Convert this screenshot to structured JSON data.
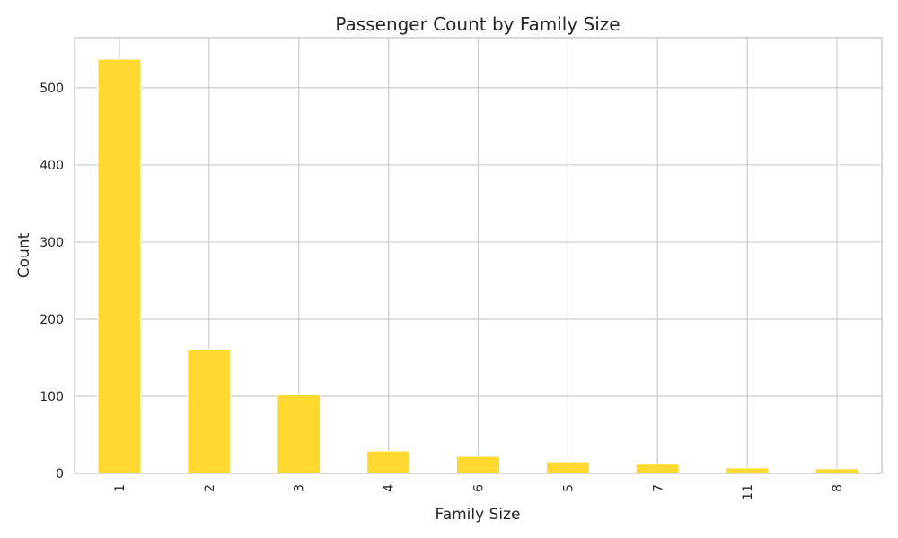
{
  "chart_data": {
    "type": "bar",
    "title": "Passenger Count by Family Size",
    "xlabel": "Family Size",
    "ylabel": "Count",
    "categories": [
      "1",
      "2",
      "3",
      "4",
      "6",
      "5",
      "7",
      "11",
      "8"
    ],
    "values": [
      537,
      161,
      102,
      29,
      22,
      15,
      12,
      7,
      6
    ],
    "ylim": [
      0,
      565
    ],
    "yticks": [
      0,
      100,
      200,
      300,
      400,
      500
    ],
    "grid": true,
    "bar_color": "#FFD92F",
    "grid_color": "#CCCCCC"
  }
}
